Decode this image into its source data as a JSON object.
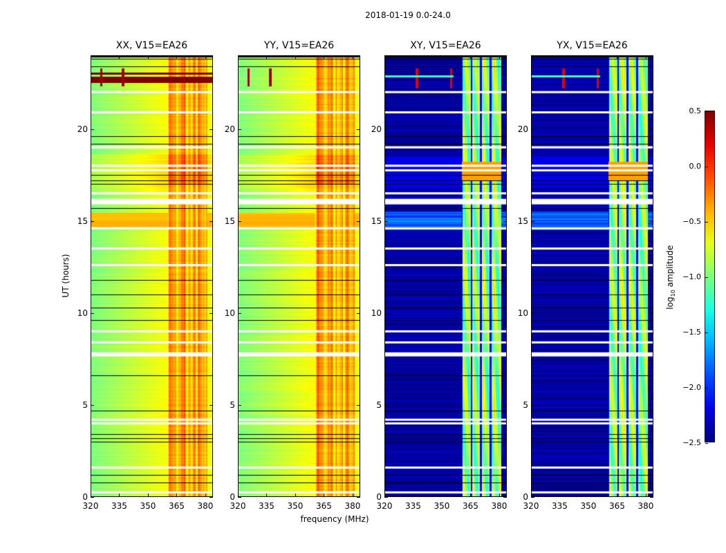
{
  "chart_data": {
    "type": "heatmap",
    "title": "2018-01-19 0.0-24.0",
    "xlabel": "frequency (MHz)",
    "ylabel": "UT (hours)",
    "xlim": [
      320,
      384
    ],
    "ylim": [
      0,
      24
    ],
    "xticks": [
      "320",
      "335",
      "350",
      "365",
      "380"
    ],
    "yticks": [
      "0",
      "5",
      "10",
      "15",
      "20"
    ],
    "colormap": "jet",
    "colorbar": {
      "label_prefix": "log",
      "label_sub": "10",
      "label_suffix": " amplitude",
      "range": [
        -2.5,
        0.5
      ],
      "ticks": [
        "0.5",
        "0.0",
        "−0.5",
        "−1.0",
        "−1.5",
        "−2.0",
        "−2.5"
      ],
      "tick_values": [
        0.5,
        0.0,
        -0.5,
        -1.0,
        -1.5,
        -2.0,
        -2.5
      ]
    },
    "band_mhz": [
      360.5,
      381
    ],
    "band_dividers_mhz": [
      365.6,
      370.5,
      375.5
    ],
    "flagged_hours": [
      [
        22.0,
        0.08
      ],
      [
        20.9,
        0.06
      ],
      [
        19.0,
        0.12
      ],
      [
        18.0,
        0.08
      ],
      [
        17.75,
        0.06
      ],
      [
        16.5,
        0.06
      ],
      [
        16.05,
        0.3
      ],
      [
        14.6,
        0.08
      ],
      [
        13.5,
        0.1
      ],
      [
        12.6,
        0.06
      ],
      [
        9.0,
        0.08
      ],
      [
        8.4,
        0.06
      ],
      [
        7.75,
        0.22
      ],
      [
        4.2,
        0.1
      ],
      [
        4.0,
        0.06
      ],
      [
        1.6,
        0.1
      ],
      [
        0.25,
        0.08
      ]
    ],
    "black_line_hours": [
      23.8,
      23.4,
      19.6,
      19.2,
      17.5,
      17.2,
      17.0,
      15.7,
      11.8,
      11.0,
      10.3,
      9.6,
      6.6,
      4.7,
      3.4,
      3.2,
      3.0,
      1.2,
      0.8
    ],
    "panels": [
      {
        "title": "XX, V15=EA26",
        "kind": "parallel",
        "rfi_band": true
      },
      {
        "title": "YY, V15=EA26",
        "kind": "parallel",
        "rfi_band": false
      },
      {
        "title": "XY, V15=EA26",
        "kind": "cross",
        "rfi_band": false
      },
      {
        "title": "YX, V15=EA26",
        "kind": "cross",
        "rfi_band": false
      }
    ]
  }
}
